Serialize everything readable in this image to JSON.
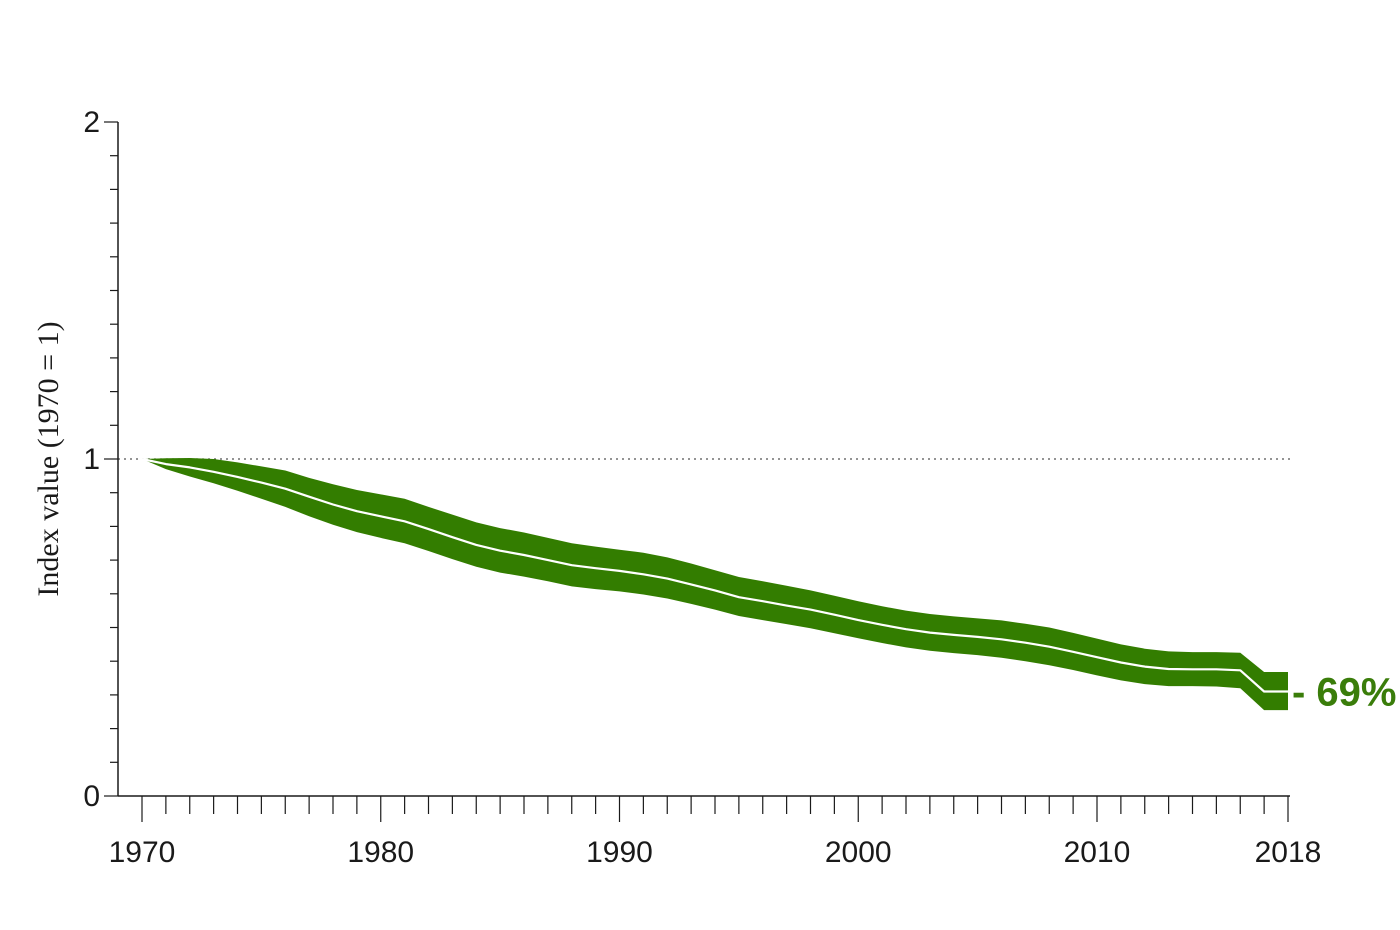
{
  "chart_data": {
    "type": "area",
    "title": "",
    "xlabel": "",
    "ylabel": "Index value (1970 = 1)",
    "xlim": [
      1970,
      2018
    ],
    "ylim": [
      0,
      2
    ],
    "x_tick_labels": [
      "1970",
      "1980",
      "1990",
      "2000",
      "2010",
      "2018"
    ],
    "x_tick_values": [
      1970,
      1980,
      1990,
      2000,
      2010,
      2018
    ],
    "y_tick_labels": [
      "0",
      "1",
      "2"
    ],
    "y_tick_values": [
      0,
      1,
      2
    ],
    "y_minor_step": 0.1,
    "x_minor_step": 1,
    "reference_line": {
      "y": 1,
      "style": "dotted"
    },
    "x": [
      1970,
      1971,
      1972,
      1973,
      1974,
      1975,
      1976,
      1977,
      1978,
      1979,
      1980,
      1981,
      1982,
      1983,
      1984,
      1985,
      1986,
      1987,
      1988,
      1989,
      1990,
      1991,
      1992,
      1993,
      1994,
      1995,
      1996,
      1997,
      1998,
      1999,
      2000,
      2001,
      2002,
      2003,
      2004,
      2005,
      2006,
      2007,
      2008,
      2009,
      2010,
      2011,
      2012,
      2013,
      2014,
      2015,
      2016,
      2017,
      2018
    ],
    "series": [
      {
        "values": [
          1.0,
          0.985,
          0.975,
          0.962,
          0.947,
          0.93,
          0.912,
          0.888,
          0.865,
          0.845,
          0.83,
          0.815,
          0.792,
          0.768,
          0.745,
          0.728,
          0.715,
          0.7,
          0.685,
          0.676,
          0.668,
          0.658,
          0.645,
          0.628,
          0.61,
          0.59,
          0.578,
          0.565,
          0.553,
          0.538,
          0.522,
          0.508,
          0.495,
          0.485,
          0.478,
          0.472,
          0.465,
          0.455,
          0.443,
          0.428,
          0.412,
          0.396,
          0.384,
          0.377,
          0.376,
          0.376,
          0.373,
          0.31,
          0.31
        ],
        "lower": [
          1.0,
          0.97,
          0.948,
          0.928,
          0.906,
          0.882,
          0.858,
          0.83,
          0.805,
          0.783,
          0.766,
          0.75,
          0.727,
          0.703,
          0.68,
          0.663,
          0.651,
          0.637,
          0.622,
          0.614,
          0.607,
          0.598,
          0.586,
          0.57,
          0.553,
          0.534,
          0.522,
          0.51,
          0.498,
          0.483,
          0.468,
          0.454,
          0.441,
          0.431,
          0.424,
          0.418,
          0.41,
          0.4,
          0.388,
          0.374,
          0.358,
          0.343,
          0.332,
          0.326,
          0.326,
          0.325,
          0.32,
          0.255,
          0.255
        ],
        "upper": [
          1.0,
          1.002,
          1.003,
          1.0,
          0.99,
          0.978,
          0.966,
          0.944,
          0.925,
          0.908,
          0.895,
          0.882,
          0.858,
          0.835,
          0.812,
          0.795,
          0.782,
          0.766,
          0.75,
          0.74,
          0.731,
          0.722,
          0.708,
          0.69,
          0.67,
          0.65,
          0.637,
          0.624,
          0.61,
          0.594,
          0.578,
          0.563,
          0.55,
          0.54,
          0.533,
          0.527,
          0.521,
          0.511,
          0.5,
          0.484,
          0.467,
          0.45,
          0.437,
          0.429,
          0.427,
          0.427,
          0.425,
          0.368,
          0.368
        ]
      }
    ],
    "end_label": "- 69%",
    "colors": {
      "band": "#337d00",
      "line": "#ffffff",
      "axis": "#1a1a1a",
      "label": "#3a7d0a"
    }
  }
}
